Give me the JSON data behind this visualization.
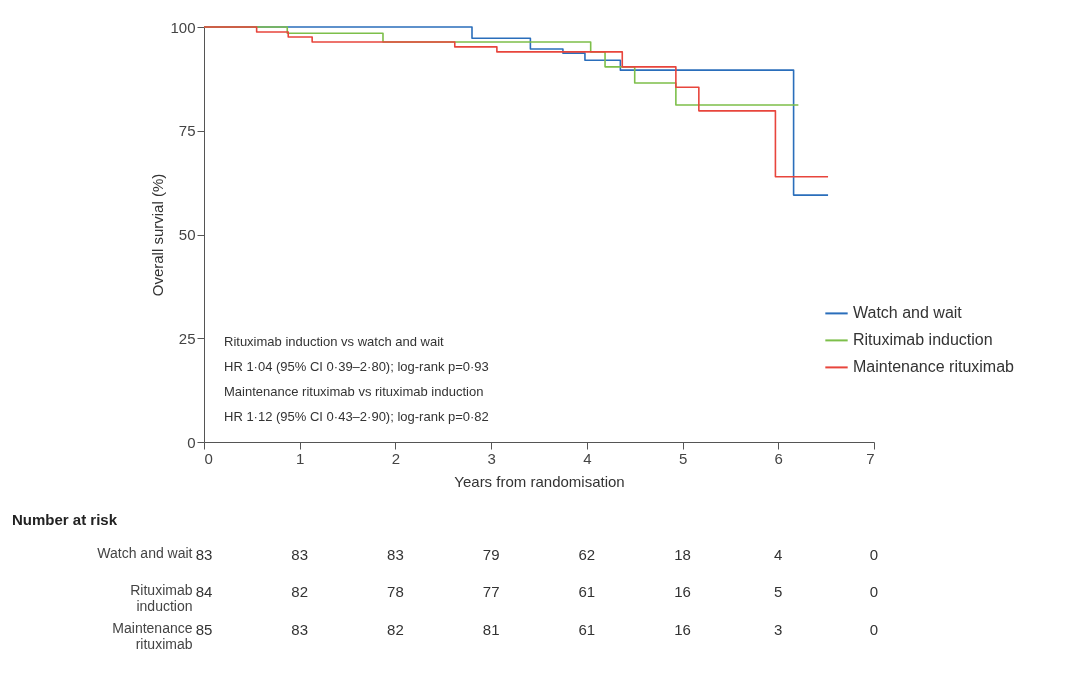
{
  "chart_data": [
    {
      "type": "step",
      "xlabel": "Years from randomisation",
      "ylabel": "Overall survial (%)",
      "xlim": [
        0,
        7
      ],
      "xticks": [
        0,
        1,
        2,
        3,
        4,
        5,
        6,
        7
      ],
      "ylim": [
        0,
        100
      ],
      "yticks": [
        0,
        25,
        50,
        75,
        100
      ],
      "grid": false,
      "legend": "right",
      "annotations": [
        "Rituximab induction vs watch and wait",
        "HR 1·04 (95% CI 0·39–2·80); log-rank p=0·93",
        "Maintenance rituximab vs rituximab induction",
        "HR 1·12 (95% CI 0·43–2·90); log-rank p=0·82"
      ],
      "series": [
        {
          "name": "Watch and wait",
          "color": "#2a6ebb",
          "x": [
            0,
            2.8,
            3.41,
            3.75,
            3.98,
            4.35,
            6.16,
            6.52
          ],
          "values": [
            100,
            97.3,
            94.7,
            93.7,
            92,
            89.6,
            59.5,
            59.5
          ]
        },
        {
          "name": "Rituximab induction",
          "color": "#7dbf4a",
          "x": [
            0,
            0.87,
            1.87,
            4.04,
            4.19,
            4.5,
            4.93,
            6.21
          ],
          "values": [
            100,
            98.5,
            96.4,
            94,
            90.4,
            86.5,
            81.2,
            81.2
          ]
        },
        {
          "name": "Maintenance rituximab",
          "color": "#e8453c",
          "x": [
            0,
            0.55,
            0.88,
            1.13,
            2.62,
            3.06,
            4.37,
            4.93,
            5.17,
            5.97,
            6.52
          ],
          "values": [
            100,
            98.8,
            97.6,
            96.4,
            95.2,
            94,
            90.4,
            85.5,
            79.8,
            63.9,
            63.9
          ]
        }
      ]
    },
    {
      "type": "heatmap",
      "title": "Number at risk",
      "data_labels": true,
      "categories": [
        null,
        null,
        null,
        null,
        null,
        null,
        null,
        null
      ],
      "y_categories": [
        "Watch and wait",
        "Rituximab induction",
        "Maintenance rituximab"
      ],
      "cells": [
        [
          83,
          83,
          83,
          79,
          62,
          18,
          4,
          0
        ],
        [
          84,
          82,
          78,
          77,
          61,
          16,
          5,
          0
        ],
        [
          85,
          83,
          82,
          81,
          61,
          16,
          3,
          0
        ]
      ]
    }
  ]
}
